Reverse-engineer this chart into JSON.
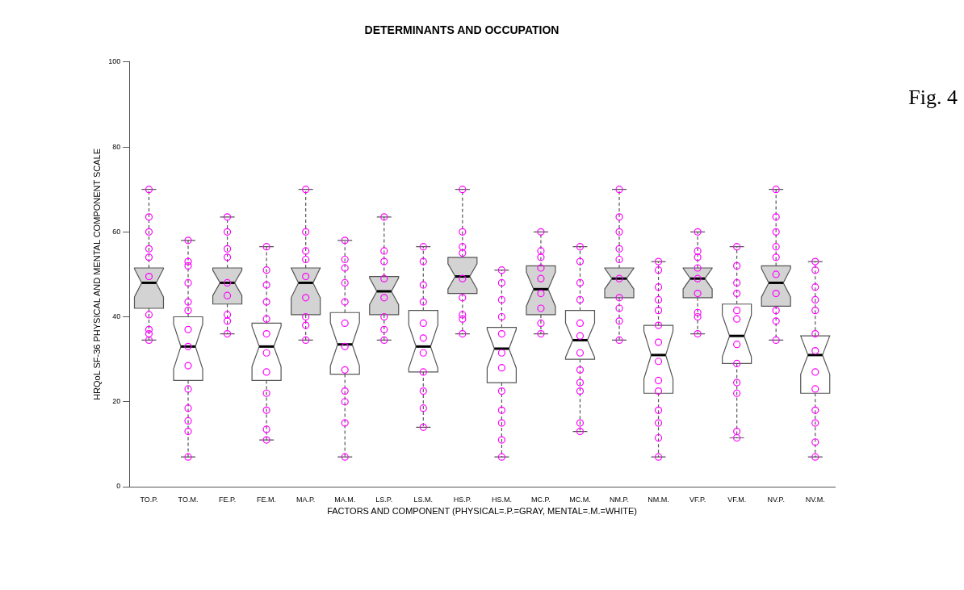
{
  "chart_data": {
    "type": "box",
    "title": "DETERMINANTS AND OCCUPATION",
    "xlabel": "FACTORS AND COMPONENT (PHYSICAL=.P.=GRAY, MENTAL=.M.=WHITE)",
    "ylabel": "HRQoL SF-36 PHYSICAL AND MENTAL COMPONENT SCALE",
    "annotations": [
      "Fig. 4"
    ],
    "categories": [
      "TO.P.",
      "TO.M.",
      "FE.P.",
      "FE.M.",
      "MA.P.",
      "MA.M.",
      "LS.P.",
      "LS.M.",
      "HS.P.",
      "HS.M.",
      "MC.P.",
      "MC.M.",
      "NM.P.",
      "NM.M.",
      "VF.P.",
      "VF.M.",
      "NV.P.",
      "NV.M."
    ],
    "ylim": [
      0,
      100
    ],
    "yticks": [
      0,
      20,
      40,
      60,
      80,
      100
    ],
    "grid": false,
    "legend": false,
    "series": [
      {
        "colors": [
          "#d3d3d3",
          "#ffffff",
          "#d3d3d3",
          "#ffffff",
          "#d3d3d3",
          "#ffffff",
          "#d3d3d3",
          "#ffffff",
          "#d3d3d3",
          "#ffffff",
          "#d3d3d3",
          "#ffffff",
          "#d3d3d3",
          "#ffffff",
          "#d3d3d3",
          "#ffffff",
          "#d3d3d3",
          "#ffffff"
        ],
        "boxes": [
          {
            "low": 34.5,
            "q1": 42,
            "median": 48,
            "q3": 51.5,
            "high": 70
          },
          {
            "low": 7,
            "q1": 25,
            "median": 33,
            "q3": 40,
            "high": 58
          },
          {
            "low": 36,
            "q1": 43,
            "median": 48,
            "q3": 51.5,
            "high": 63.5
          },
          {
            "low": 11,
            "q1": 25,
            "median": 33,
            "q3": 38.5,
            "high": 56.5
          },
          {
            "low": 34.5,
            "q1": 40.5,
            "median": 48,
            "q3": 51.5,
            "high": 70
          },
          {
            "low": 7,
            "q1": 26.5,
            "median": 33.5,
            "q3": 41,
            "high": 58
          },
          {
            "low": 34.5,
            "q1": 40.5,
            "median": 46,
            "q3": 49.5,
            "high": 63.5
          },
          {
            "low": 14,
            "q1": 27,
            "median": 33,
            "q3": 41.5,
            "high": 56.5
          },
          {
            "low": 36,
            "q1": 45.5,
            "median": 49.5,
            "q3": 54,
            "high": 70
          },
          {
            "low": 7,
            "q1": 24.5,
            "median": 32.5,
            "q3": 37.5,
            "high": 51
          },
          {
            "low": 36,
            "q1": 40.5,
            "median": 46.5,
            "q3": 52,
            "high": 60
          },
          {
            "low": 13,
            "q1": 30,
            "median": 34.5,
            "q3": 41.5,
            "high": 56.5
          },
          {
            "low": 34.5,
            "q1": 44.5,
            "median": 49,
            "q3": 51.5,
            "high": 70
          },
          {
            "low": 7,
            "q1": 22,
            "median": 31,
            "q3": 38,
            "high": 53
          },
          {
            "low": 36,
            "q1": 44.5,
            "median": 49,
            "q3": 51.5,
            "high": 60
          },
          {
            "low": 11.5,
            "q1": 29,
            "median": 35.5,
            "q3": 43,
            "high": 56.5
          },
          {
            "low": 34.5,
            "q1": 42.5,
            "median": 48,
            "q3": 52,
            "high": 70
          },
          {
            "low": 7,
            "q1": 22,
            "median": 31,
            "q3": 35.5,
            "high": 53
          }
        ]
      },
      {
        "type": "scatter",
        "color": "#ff00ff",
        "marker": "circle",
        "x": [
          "TO.P.",
          "TO.P.",
          "TO.P.",
          "TO.P.",
          "TO.P.",
          "TO.P.",
          "TO.P.",
          "TO.P.",
          "TO.P.",
          "TO.P.",
          "TO.M.",
          "TO.M.",
          "TO.M.",
          "TO.M.",
          "TO.M.",
          "TO.M.",
          "TO.M.",
          "TO.M.",
          "TO.M.",
          "TO.M.",
          "TO.M.",
          "TO.M.",
          "TO.M.",
          "TO.M.",
          "FE.P.",
          "FE.P.",
          "FE.P.",
          "FE.P.",
          "FE.P.",
          "FE.P.",
          "FE.P.",
          "FE.P.",
          "FE.P.",
          "FE.M.",
          "FE.M.",
          "FE.M.",
          "FE.M.",
          "FE.M.",
          "FE.M.",
          "FE.M.",
          "FE.M.",
          "FE.M.",
          "FE.M.",
          "FE.M.",
          "FE.M.",
          "MA.P.",
          "MA.P.",
          "MA.P.",
          "MA.P.",
          "MA.P.",
          "MA.P.",
          "MA.P.",
          "MA.P.",
          "MA.P.",
          "MA.M.",
          "MA.M.",
          "MA.M.",
          "MA.M.",
          "MA.M.",
          "MA.M.",
          "MA.M.",
          "MA.M.",
          "MA.M.",
          "MA.M.",
          "MA.M.",
          "MA.M.",
          "LS.P.",
          "LS.P.",
          "LS.P.",
          "LS.P.",
          "LS.P.",
          "LS.P.",
          "LS.P.",
          "LS.P.",
          "LS.M.",
          "LS.M.",
          "LS.M.",
          "LS.M.",
          "LS.M.",
          "LS.M.",
          "LS.M.",
          "LS.M.",
          "LS.M.",
          "LS.M.",
          "LS.M.",
          "HS.P.",
          "HS.P.",
          "HS.P.",
          "HS.P.",
          "HS.P.",
          "HS.P.",
          "HS.P.",
          "HS.P.",
          "HS.P.",
          "HS.M.",
          "HS.M.",
          "HS.M.",
          "HS.M.",
          "HS.M.",
          "HS.M.",
          "HS.M.",
          "HS.M.",
          "HS.M.",
          "HS.M.",
          "HS.M.",
          "HS.M.",
          "MC.P.",
          "MC.P.",
          "MC.P.",
          "MC.P.",
          "MC.P.",
          "MC.P.",
          "MC.P.",
          "MC.P.",
          "MC.P.",
          "MC.M.",
          "MC.M.",
          "MC.M.",
          "MC.M.",
          "MC.M.",
          "MC.M.",
          "MC.M.",
          "MC.M.",
          "MC.M.",
          "MC.M.",
          "MC.M.",
          "MC.M.",
          "NM.P.",
          "NM.P.",
          "NM.P.",
          "NM.P.",
          "NM.P.",
          "NM.P.",
          "NM.P.",
          "NM.P.",
          "NM.P.",
          "NM.P.",
          "NM.M.",
          "NM.M.",
          "NM.M.",
          "NM.M.",
          "NM.M.",
          "NM.M.",
          "NM.M.",
          "NM.M.",
          "NM.M.",
          "NM.M.",
          "NM.M.",
          "NM.M.",
          "NM.M.",
          "NM.M.",
          "VF.P.",
          "VF.P.",
          "VF.P.",
          "VF.P.",
          "VF.P.",
          "VF.P.",
          "VF.P.",
          "VF.P.",
          "VF.P.",
          "VF.M.",
          "VF.M.",
          "VF.M.",
          "VF.M.",
          "VF.M.",
          "VF.M.",
          "VF.M.",
          "VF.M.",
          "VF.M.",
          "VF.M.",
          "VF.M.",
          "VF.M.",
          "NV.P.",
          "NV.P.",
          "NV.P.",
          "NV.P.",
          "NV.P.",
          "NV.P.",
          "NV.P.",
          "NV.P.",
          "NV.P.",
          "NV.P.",
          "NV.M.",
          "NV.M.",
          "NV.M.",
          "NV.M.",
          "NV.M.",
          "NV.M.",
          "NV.M.",
          "NV.M.",
          "NV.M.",
          "NV.M.",
          "NV.M.",
          "NV.M.",
          "NV.M."
        ],
        "values": [
          70,
          63.5,
          60,
          56,
          54,
          49.5,
          40.5,
          37,
          36,
          34.5,
          58,
          53,
          52,
          48,
          43.5,
          41.5,
          37,
          33,
          28.5,
          23,
          18.5,
          15.5,
          13,
          7,
          63.5,
          60,
          56,
          54,
          48,
          45,
          40.5,
          39,
          36,
          56.5,
          51,
          47.5,
          43.5,
          39.5,
          36,
          31.5,
          27,
          22,
          18,
          13.5,
          11,
          70,
          60,
          55.5,
          53.5,
          49.5,
          44.5,
          40,
          38,
          34.5,
          58,
          53.5,
          51.5,
          48,
          43.5,
          38.5,
          33,
          27.5,
          22.5,
          20,
          15,
          7,
          63.5,
          55.5,
          53,
          49,
          44.5,
          40,
          37,
          34.5,
          56.5,
          53,
          47.5,
          43.5,
          38.5,
          35,
          31.5,
          27,
          22.5,
          18.5,
          14,
          70,
          60,
          56.5,
          55,
          49,
          44.5,
          40.5,
          39.5,
          36,
          51,
          48,
          44,
          40,
          36,
          31.5,
          28,
          22.5,
          18,
          15,
          11,
          7,
          60,
          55.5,
          54,
          51.5,
          49,
          45.5,
          42,
          38.5,
          36,
          56.5,
          53,
          48,
          44,
          38.5,
          35.5,
          31.5,
          27.5,
          24.5,
          22.5,
          15,
          13,
          70,
          63.5,
          60,
          56,
          53.5,
          49,
          44.5,
          42,
          39,
          34.5,
          53,
          51,
          47,
          44,
          41.5,
          38,
          34,
          29.5,
          25,
          22.5,
          18,
          15,
          11.5,
          7,
          60,
          55.5,
          54,
          51.5,
          49,
          45.5,
          41,
          40,
          36,
          56.5,
          52,
          48,
          45.5,
          41.5,
          39.5,
          33.5,
          29,
          24.5,
          22,
          13,
          11.5,
          70,
          63.5,
          60,
          56.5,
          54,
          50,
          45.5,
          41.5,
          39,
          34.5,
          53,
          51,
          47,
          44,
          41.5,
          36,
          32,
          27,
          23,
          18,
          15,
          10.5,
          7
        ]
      }
    ]
  }
}
